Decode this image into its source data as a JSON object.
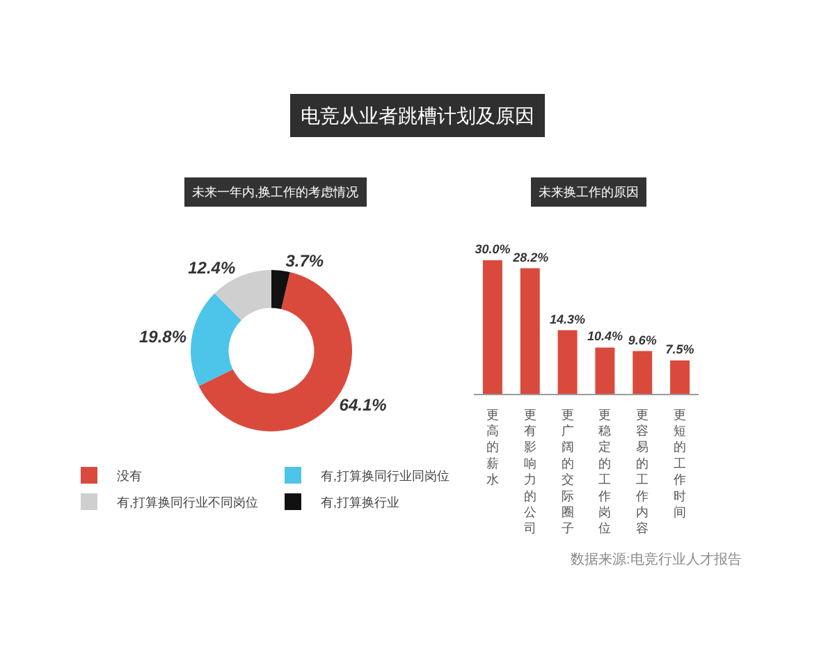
{
  "chart_data": [
    {
      "type": "other",
      "title": "电竞从业者跳槽计划及原因"
    },
    {
      "type": "donut",
      "title": "未来一年内,换工作的考虑情况",
      "categories": [
        "没有",
        "有,打算换同行业同岗位",
        "有,打算换同行业不同岗位",
        "有,打算换行业"
      ],
      "values": [
        64.1,
        19.8,
        12.4,
        3.7
      ],
      "colors": [
        "#d94a3d",
        "#4dc4ea",
        "#cfcfcf",
        "#111111"
      ],
      "value_labels": [
        "64.1%",
        "19.8%",
        "12.4%",
        "3.7%"
      ],
      "legend": "bottom"
    },
    {
      "type": "bar",
      "title": "未来换工作的原因",
      "categories": [
        "更高的薪水",
        "更有影响力的公司",
        "更广阔的交际圈子",
        "更稳定的工作岗位",
        "更容易的工作内容",
        "更短的工作时间"
      ],
      "values": [
        30.0,
        28.2,
        14.3,
        10.4,
        9.6,
        7.5
      ],
      "color": "#d94a3d",
      "value_labels": [
        "30.0%",
        "28.2%",
        "14.3%",
        "10.4%",
        "9.6%",
        "7.5%"
      ],
      "annotations": [
        "数据来源:电竞行业人才报告"
      ]
    }
  ]
}
